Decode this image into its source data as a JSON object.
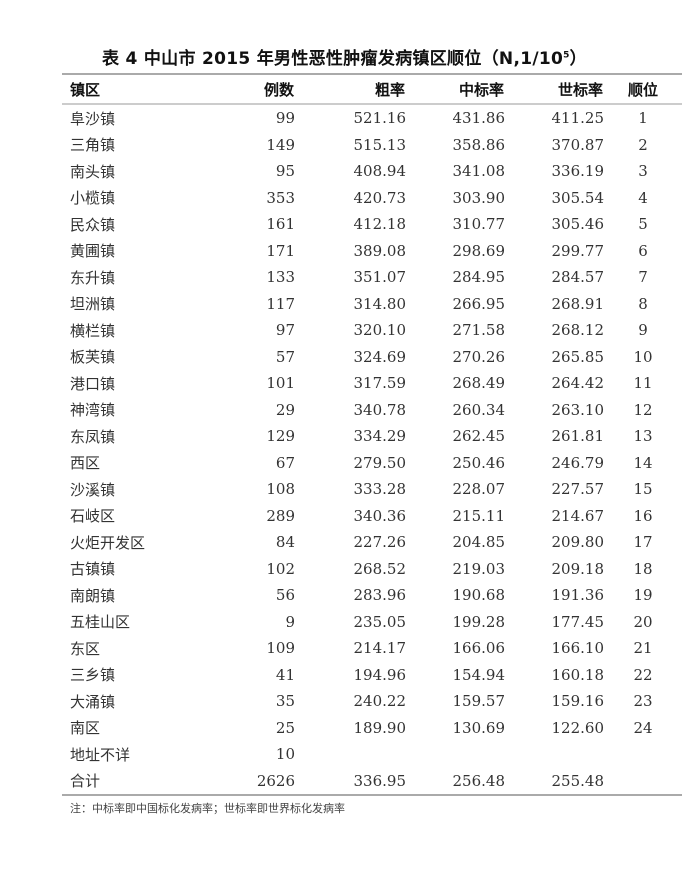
{
  "title": {
    "text": "表 4 中山市 2015 年男性恶性肿瘤发病镇区顺位（N,1/10",
    "sup": "5",
    "close": "）"
  },
  "headers": [
    "镇区",
    "例数",
    "粗率",
    "中标率",
    "世标率",
    "顺位"
  ],
  "rows": [
    [
      "阜沙镇",
      "99",
      "521.16",
      "431.86",
      "411.25",
      "1"
    ],
    [
      "三角镇",
      "149",
      "515.13",
      "358.86",
      "370.87",
      "2"
    ],
    [
      "南头镇",
      "95",
      "408.94",
      "341.08",
      "336.19",
      "3"
    ],
    [
      "小榄镇",
      "353",
      "420.73",
      "303.90",
      "305.54",
      "4"
    ],
    [
      "民众镇",
      "161",
      "412.18",
      "310.77",
      "305.46",
      "5"
    ],
    [
      "黄圃镇",
      "171",
      "389.08",
      "298.69",
      "299.77",
      "6"
    ],
    [
      "东升镇",
      "133",
      "351.07",
      "284.95",
      "284.57",
      "7"
    ],
    [
      "坦洲镇",
      "117",
      "314.80",
      "266.95",
      "268.91",
      "8"
    ],
    [
      "横栏镇",
      "97",
      "320.10",
      "271.58",
      "268.12",
      "9"
    ],
    [
      "板芙镇",
      "57",
      "324.69",
      "270.26",
      "265.85",
      "10"
    ],
    [
      "港口镇",
      "101",
      "317.59",
      "268.49",
      "264.42",
      "11"
    ],
    [
      "神湾镇",
      "29",
      "340.78",
      "260.34",
      "263.10",
      "12"
    ],
    [
      "东凤镇",
      "129",
      "334.29",
      "262.45",
      "261.81",
      "13"
    ],
    [
      "西区",
      "67",
      "279.50",
      "250.46",
      "246.79",
      "14"
    ],
    [
      "沙溪镇",
      "108",
      "333.28",
      "228.07",
      "227.57",
      "15"
    ],
    [
      "石岐区",
      "289",
      "340.36",
      "215.11",
      "214.67",
      "16"
    ],
    [
      "火炬开发区",
      "84",
      "227.26",
      "204.85",
      "209.80",
      "17"
    ],
    [
      "古镇镇",
      "102",
      "268.52",
      "219.03",
      "209.18",
      "18"
    ],
    [
      "南朗镇",
      "56",
      "283.96",
      "190.68",
      "191.36",
      "19"
    ],
    [
      "五桂山区",
      "9",
      "235.05",
      "199.28",
      "177.45",
      "20"
    ],
    [
      "东区",
      "109",
      "214.17",
      "166.06",
      "166.10",
      "21"
    ],
    [
      "三乡镇",
      "41",
      "194.96",
      "154.94",
      "160.18",
      "22"
    ],
    [
      "大涌镇",
      "35",
      "240.22",
      "159.57",
      "159.16",
      "23"
    ],
    [
      "南区",
      "25",
      "189.90",
      "130.69",
      "122.60",
      "24"
    ],
    [
      "地址不详",
      "10",
      "",
      "",
      "",
      ""
    ],
    [
      "合计",
      "2626",
      "336.95",
      "256.48",
      "255.48",
      ""
    ]
  ],
  "note": "注：中标率即中国标化发病率；世标率即世界标化发病率"
}
